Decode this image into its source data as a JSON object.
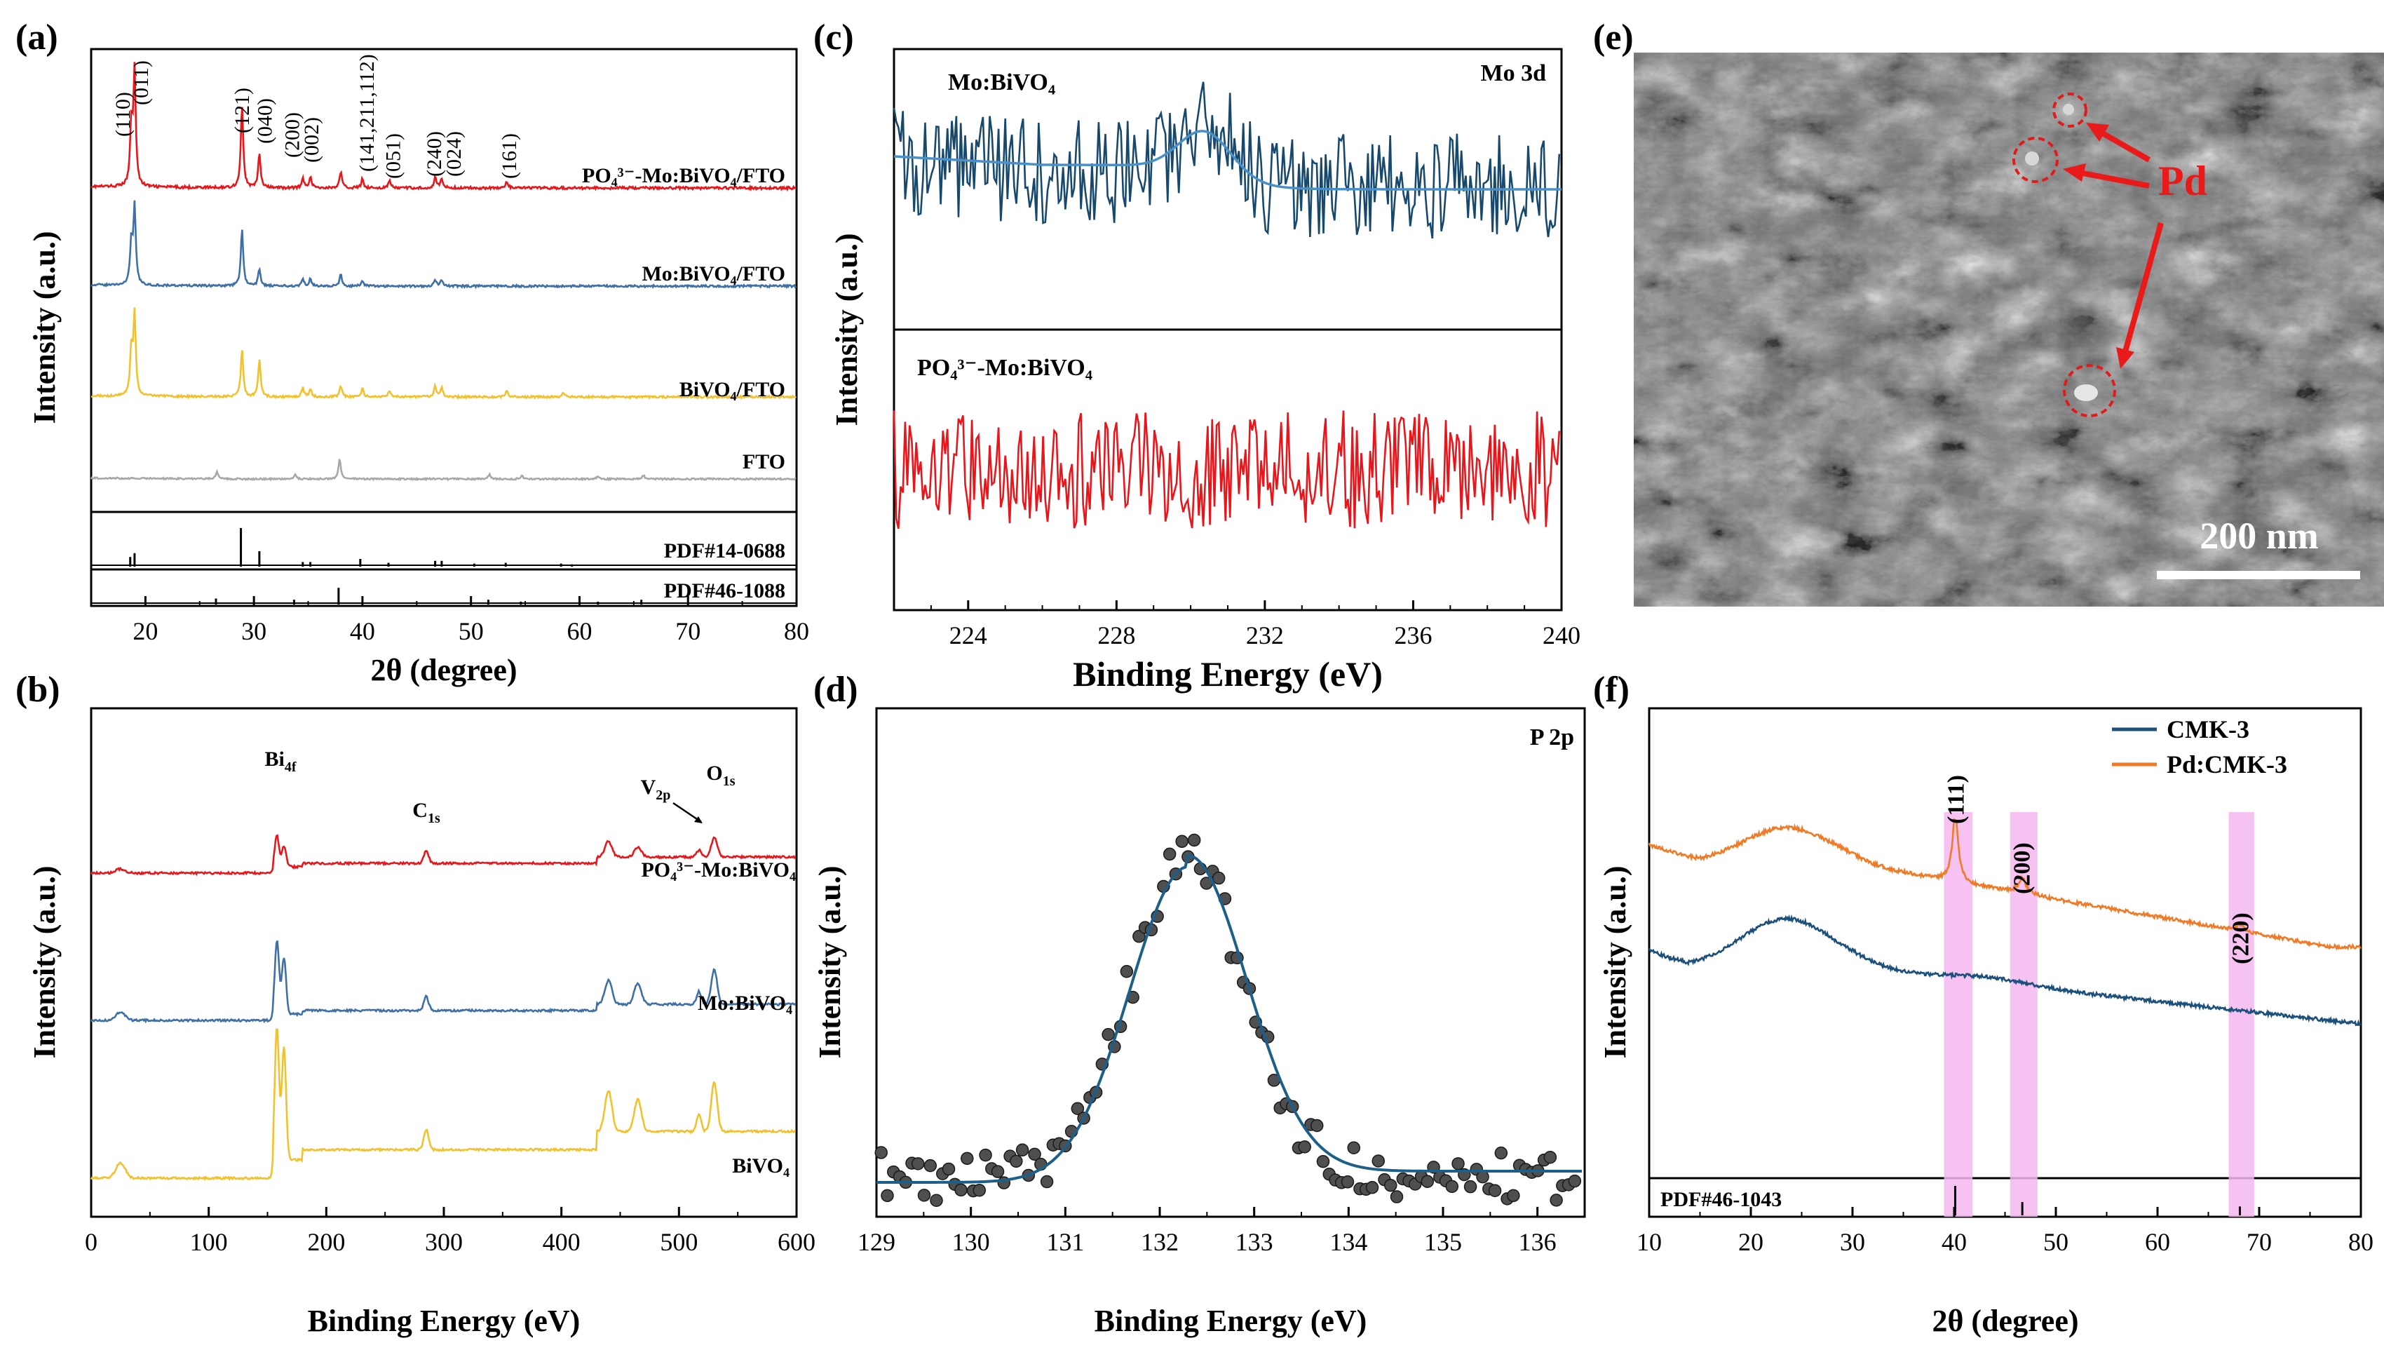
{
  "colors": {
    "red": "#e8161b",
    "blue": "#3e6fa6",
    "yellow": "#f2c12e",
    "gray": "#a8a8a8",
    "navy": "#17486d",
    "fitblue": "#4a90c8",
    "orange": "#f07a26",
    "darkblue": "#1b4f7c",
    "pink": "#f4b7f0"
  },
  "chart_data": [
    {
      "id": "a",
      "panel_label": "(a)",
      "type": "line",
      "xlabel": "2θ (degree)",
      "ylabel": "Intensity (a.u.)",
      "xlim": [
        15,
        80
      ],
      "xticks": [
        "20",
        "30",
        "40",
        "50",
        "60",
        "70",
        "80"
      ],
      "series": [
        {
          "name": "PO4 3−-Mo:BiVO4/FTO",
          "label": "PO₄³⁻-Mo:BiVO₄/FTO",
          "color": "#e8161b",
          "baseline": 0,
          "peaks": [
            [
              18.7,
              52
            ],
            [
              19.0,
              100
            ],
            [
              28.9,
              72
            ],
            [
              30.5,
              30
            ],
            [
              34.5,
              8
            ],
            [
              35.2,
              10
            ],
            [
              38.0,
              14
            ],
            [
              40.0,
              8
            ],
            [
              42.5,
              6
            ],
            [
              46.7,
              9
            ],
            [
              47.3,
              8
            ],
            [
              53.3,
              5
            ]
          ]
        },
        {
          "name": "Mo:BiVO4/FTO",
          "label": "Mo:BiVO₄/FTO",
          "color": "#3e6fa6",
          "baseline": 0,
          "peaks": [
            [
              18.7,
              45
            ],
            [
              19.0,
              82
            ],
            [
              28.9,
              60
            ],
            [
              30.5,
              18
            ],
            [
              34.5,
              8
            ],
            [
              35.2,
              8
            ],
            [
              38.0,
              12
            ],
            [
              40.0,
              6
            ],
            [
              46.7,
              7
            ],
            [
              47.3,
              6
            ]
          ]
        },
        {
          "name": "BiVO4/FTO",
          "label": "BiVO₄/FTO",
          "color": "#f2c12e",
          "baseline": 0,
          "peaks": [
            [
              18.7,
              50
            ],
            [
              19.0,
              90
            ],
            [
              28.9,
              52
            ],
            [
              30.5,
              42
            ],
            [
              34.5,
              10
            ],
            [
              35.2,
              9
            ],
            [
              38.0,
              12
            ],
            [
              40.0,
              9
            ],
            [
              42.5,
              7
            ],
            [
              46.7,
              12
            ],
            [
              47.3,
              11
            ],
            [
              53.3,
              7
            ],
            [
              58.5,
              5
            ]
          ]
        },
        {
          "name": "FTO",
          "label": "FTO",
          "color": "#a8a8a8",
          "baseline": 0,
          "peaks": [
            [
              26.6,
              10
            ],
            [
              33.8,
              6
            ],
            [
              37.9,
              28
            ],
            [
              51.7,
              6
            ],
            [
              54.7,
              4
            ],
            [
              61.7,
              4
            ],
            [
              65.9,
              5
            ]
          ]
        }
      ],
      "reference": [
        {
          "name": "PDF#14-0688",
          "lines": [
            [
              18.6,
              0.25
            ],
            [
              19.0,
              0.35
            ],
            [
              28.8,
              1.0
            ],
            [
              30.5,
              0.4
            ],
            [
              34.5,
              0.12
            ],
            [
              35.2,
              0.12
            ],
            [
              39.8,
              0.2
            ],
            [
              42.4,
              0.1
            ],
            [
              46.7,
              0.15
            ],
            [
              47.3,
              0.15
            ],
            [
              50.3,
              0.08
            ],
            [
              53.2,
              0.1
            ],
            [
              58.3,
              0.08
            ],
            [
              59.3,
              0.06
            ]
          ]
        },
        {
          "name": "PDF#46-1088",
          "lines": [
            [
              26.5,
              0.25
            ],
            [
              33.7,
              0.2
            ],
            [
              37.8,
              0.7
            ],
            [
              51.6,
              0.2
            ],
            [
              54.6,
              0.12
            ],
            [
              61.7,
              0.12
            ],
            [
              65.7,
              0.2
            ]
          ]
        }
      ],
      "annotations": [
        "(110)",
        "(011)",
        "(121)",
        "(040)",
        "(200)",
        "(002)",
        "(141,211,112)",
        "(051)",
        "(240)",
        "(024)",
        "(161)"
      ]
    },
    {
      "id": "b",
      "panel_label": "(b)",
      "type": "line",
      "xlabel": "Binding Energy  (eV)",
      "ylabel": "Intensity (a.u.)",
      "xlim": [
        0,
        600
      ],
      "xticks": [
        "0",
        "100",
        "200",
        "300",
        "400",
        "500",
        "600"
      ],
      "series": [
        {
          "name": "PO4 3−-Mo:BiVO4",
          "label": "PO₄³⁻-Mo:BiVO₄",
          "color": "#e8161b"
        },
        {
          "name": "Mo:BiVO4",
          "label": "Mo:BiVO₄",
          "color": "#3e6fa6"
        },
        {
          "name": "BiVO4",
          "label": "BiVO₄",
          "color": "#f2c12e"
        }
      ],
      "peaks": [
        [
          25,
          14
        ],
        [
          158,
          100
        ],
        [
          164,
          80
        ],
        [
          285,
          30
        ],
        [
          440,
          40
        ],
        [
          465,
          34
        ],
        [
          517,
          22
        ],
        [
          530,
          55
        ]
      ],
      "annotations": [
        "Bi4f",
        "C1s",
        "V2p",
        "O1s"
      ]
    },
    {
      "id": "c",
      "panel_label": "(c)",
      "type": "line",
      "xlabel": "Binding Energy (eV)",
      "ylabel": "Intensity (a.u.)",
      "xlim": [
        222,
        240
      ],
      "xticks": [
        "224",
        "228",
        "232",
        "236",
        "240"
      ],
      "title": "Mo 3d",
      "series": [
        {
          "name": "Mo:BiVO4",
          "label": "Mo:BiVO₄",
          "color": "#17486d",
          "fit_color": "#4a90c8"
        },
        {
          "name": "PO4 3−-Mo:BiVO4",
          "label": "PO₄³⁻-Mo:BiVO₄",
          "color": "#e8161b"
        }
      ],
      "fit_peak_center": 230.4
    },
    {
      "id": "d",
      "panel_label": "(d)",
      "type": "scatter",
      "xlabel": "Binding Energy (eV)",
      "ylabel": "Intensity (a.u.)",
      "xlim": [
        129,
        136.5
      ],
      "xticks": [
        "129",
        "130",
        "131",
        "132",
        "133",
        "134",
        "135",
        "136"
      ],
      "title": "P 2p",
      "fit_center": 132.3,
      "fit_color": "#1e5f8a"
    },
    {
      "id": "e",
      "panel_label": "(e)",
      "type": "image",
      "pd_label": "Pd",
      "scale_bar": "200 nm"
    },
    {
      "id": "f",
      "panel_label": "(f)",
      "type": "line",
      "xlabel": "2θ (degree)",
      "ylabel": "Intensity (a.u.)",
      "xlim": [
        10,
        80
      ],
      "xticks": [
        "10",
        "20",
        "30",
        "40",
        "50",
        "60",
        "70",
        "80"
      ],
      "series": [
        {
          "name": "CMK-3",
          "color": "#1b4f7c"
        },
        {
          "name": "Pd:CMK-3",
          "color": "#f07a26"
        }
      ],
      "highlights": [
        {
          "label": "(111)",
          "x0": 39.0,
          "x1": 41.8,
          "peak": 40.1
        },
        {
          "label": "(200)",
          "x0": 45.5,
          "x1": 48.2,
          "peak": 46.6
        },
        {
          "label": "(220)",
          "x0": 67.0,
          "x1": 69.5,
          "peak": 68.1
        }
      ],
      "reference": {
        "name": "PDF#46-1043",
        "lines": [
          [
            40.1,
            1.0
          ],
          [
            46.7,
            0.45
          ],
          [
            68.1,
            0.3
          ]
        ]
      }
    }
  ]
}
